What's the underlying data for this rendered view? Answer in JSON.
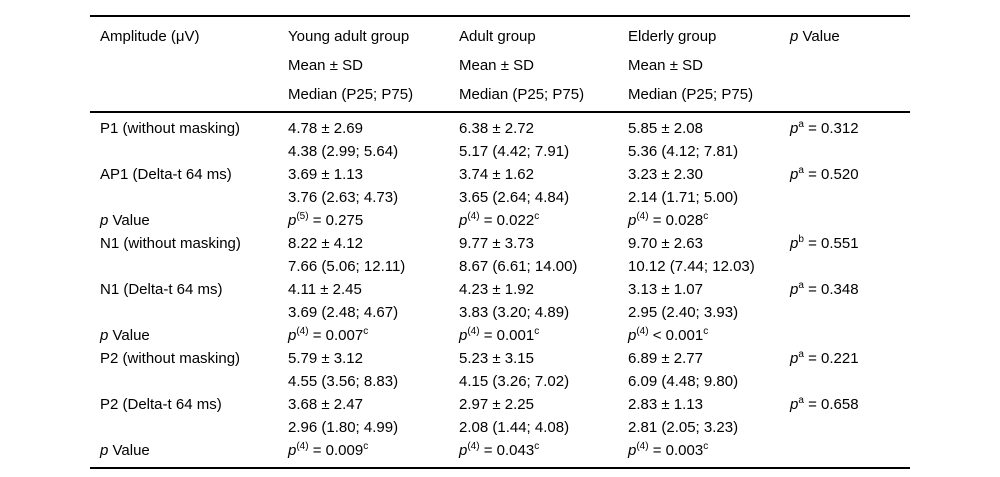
{
  "page": {
    "background": "#ffffff",
    "text_color": "#000000",
    "rule_color": "#000000"
  },
  "table": {
    "header": {
      "col1": "Amplitude (μV)",
      "groups": [
        {
          "name": "Young adult group",
          "line2": "Mean ± SD",
          "line3": "Median (P25; P75)"
        },
        {
          "name": "Adult group",
          "line2": "Mean ± SD",
          "line3": "Median (P25; P75)"
        },
        {
          "name": "Elderly group",
          "line2": "Mean ± SD",
          "line3": "Median (P25; P75)"
        }
      ],
      "p_col": "_p_ Value"
    },
    "rows": [
      {
        "label": "P1 (without masking)",
        "cols": [
          [
            "4.78 ± 2.69",
            "4.38 (2.99; 5.64)"
          ],
          [
            "6.38 ± 2.72",
            "5.17 (4.42; 7.91)"
          ],
          [
            "5.85 ± 2.08",
            "5.36 (4.12; 7.81)"
          ]
        ],
        "p": "_p_^{a} = 0.312"
      },
      {
        "label": "AP1 (Delta-t 64 ms)",
        "cols": [
          [
            "3.69 ± 1.13",
            "3.76 (2.63; 4.73)"
          ],
          [
            "3.74 ± 1.62",
            "3.65 (2.64; 4.84)"
          ],
          [
            "3.23 ± 2.30",
            "2.14 (1.71; 5.00)"
          ]
        ],
        "p": "_p_^{a} = 0.520"
      },
      {
        "label": "_p_ Value",
        "cols": [
          [
            "_p_^{(5)} = 0.275"
          ],
          [
            "_p_^{(4)} = 0.022^{c}"
          ],
          [
            "_p_^{(4)} = 0.028^{c}"
          ]
        ],
        "p": ""
      },
      {
        "label": "N1 (without masking)",
        "cols": [
          [
            "8.22 ± 4.12",
            "7.66 (5.06; 12.11)"
          ],
          [
            "9.77 ± 3.73",
            "8.67 (6.61; 14.00)"
          ],
          [
            "9.70 ± 2.63",
            "10.12 (7.44; 12.03)"
          ]
        ],
        "p": "_p_^{b} = 0.551"
      },
      {
        "label": "N1 (Delta-t 64 ms)",
        "cols": [
          [
            "4.11 ± 2.45",
            "3.69 (2.48; 4.67)"
          ],
          [
            "4.23 ± 1.92",
            "3.83 (3.20; 4.89)"
          ],
          [
            "3.13 ± 1.07",
            "2.95 (2.40; 3.93)"
          ]
        ],
        "p": "_p_^{a} = 0.348"
      },
      {
        "label": "_p_ Value",
        "cols": [
          [
            "_p_^{(4)} = 0.007^{c}"
          ],
          [
            "_p_^{(4)} = 0.001^{c}"
          ],
          [
            "_p_^{(4)} < 0.001^{c}"
          ]
        ],
        "p": ""
      },
      {
        "label": "P2 (without masking)",
        "cols": [
          [
            "5.79 ± 3.12",
            "4.55 (3.56; 8.83)"
          ],
          [
            "5.23 ± 3.15",
            "4.15 (3.26; 7.02)"
          ],
          [
            "6.89 ± 2.77",
            "6.09 (4.48; 9.80)"
          ]
        ],
        "p": "_p_^{a} = 0.221"
      },
      {
        "label": "P2 (Delta-t 64 ms)",
        "cols": [
          [
            "3.68 ± 2.47",
            "2.96 (1.80; 4.99)"
          ],
          [
            "2.97 ± 2.25",
            "2.08 (1.44; 4.08)"
          ],
          [
            "2.83 ± 1.13",
            "2.81 (2.05; 3.23)"
          ]
        ],
        "p": "_p_^{a} = 0.658"
      },
      {
        "label": "_p_ Value",
        "cols": [
          [
            "_p_^{(4)} = 0.009^{c}"
          ],
          [
            "_p_^{(4)} = 0.043^{c}"
          ],
          [
            "_p_^{(4)} = 0.003^{c}"
          ]
        ],
        "p": ""
      }
    ]
  }
}
